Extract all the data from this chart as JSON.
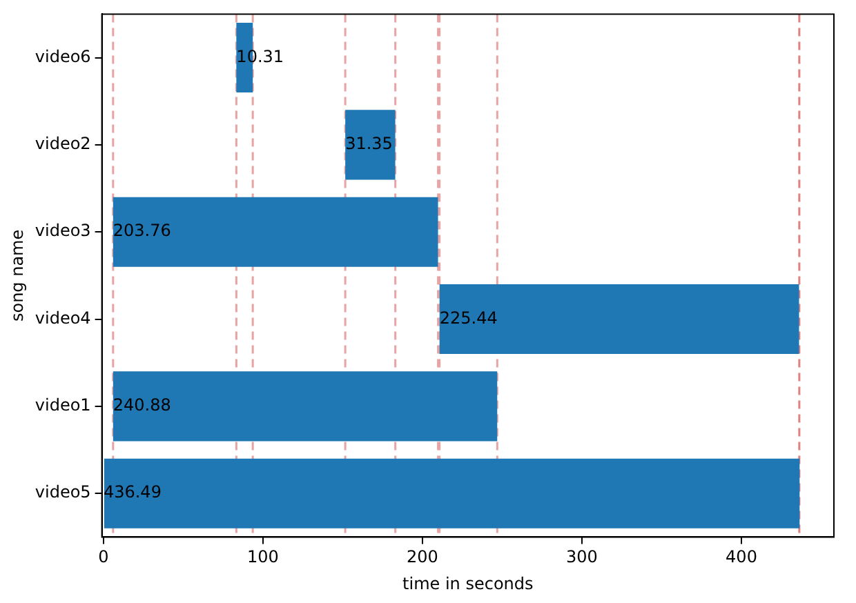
{
  "chart_data": {
    "type": "bar",
    "orientation": "horizontal",
    "xlabel": "time in seconds",
    "ylabel": "song name",
    "categories": [
      "video6",
      "video2",
      "video3",
      "video4",
      "video1",
      "video5"
    ],
    "values": [
      10.31,
      31.35,
      203.76,
      225.44,
      240.88,
      436.49
    ],
    "base": [
      83.3,
      151.6,
      6,
      210.7,
      6,
      0
    ],
    "color": "#1f77b4",
    "data_labels": true,
    "xlim": [
      -1,
      458
    ],
    "xticks": [
      0,
      100,
      200,
      300,
      400
    ],
    "grid": false,
    "legend": false,
    "ref_lines": [
      {
        "axis": "x",
        "value": 6,
        "color": "#e8a3a3",
        "line_style": "dashed"
      },
      {
        "axis": "x",
        "value": 83.3,
        "color": "#e8a3a3",
        "line_style": "dashed"
      },
      {
        "axis": "x",
        "value": 93.6,
        "color": "#e8a3a3",
        "line_style": "dashed"
      },
      {
        "axis": "x",
        "value": 151.6,
        "color": "#e8a3a3",
        "line_style": "dashed"
      },
      {
        "axis": "x",
        "value": 183,
        "color": "#e8a3a3",
        "line_style": "dashed"
      },
      {
        "axis": "x",
        "value": 209.8,
        "color": "#e8a3a3",
        "line_style": "dashed"
      },
      {
        "axis": "x",
        "value": 210.7,
        "color": "#e8a3a3",
        "line_style": "dashed"
      },
      {
        "axis": "x",
        "value": 246.9,
        "color": "#e8a3a3",
        "line_style": "dashed"
      },
      {
        "axis": "x",
        "value": 436.3,
        "color": "#e08080",
        "line_style": "dashed"
      }
    ]
  }
}
